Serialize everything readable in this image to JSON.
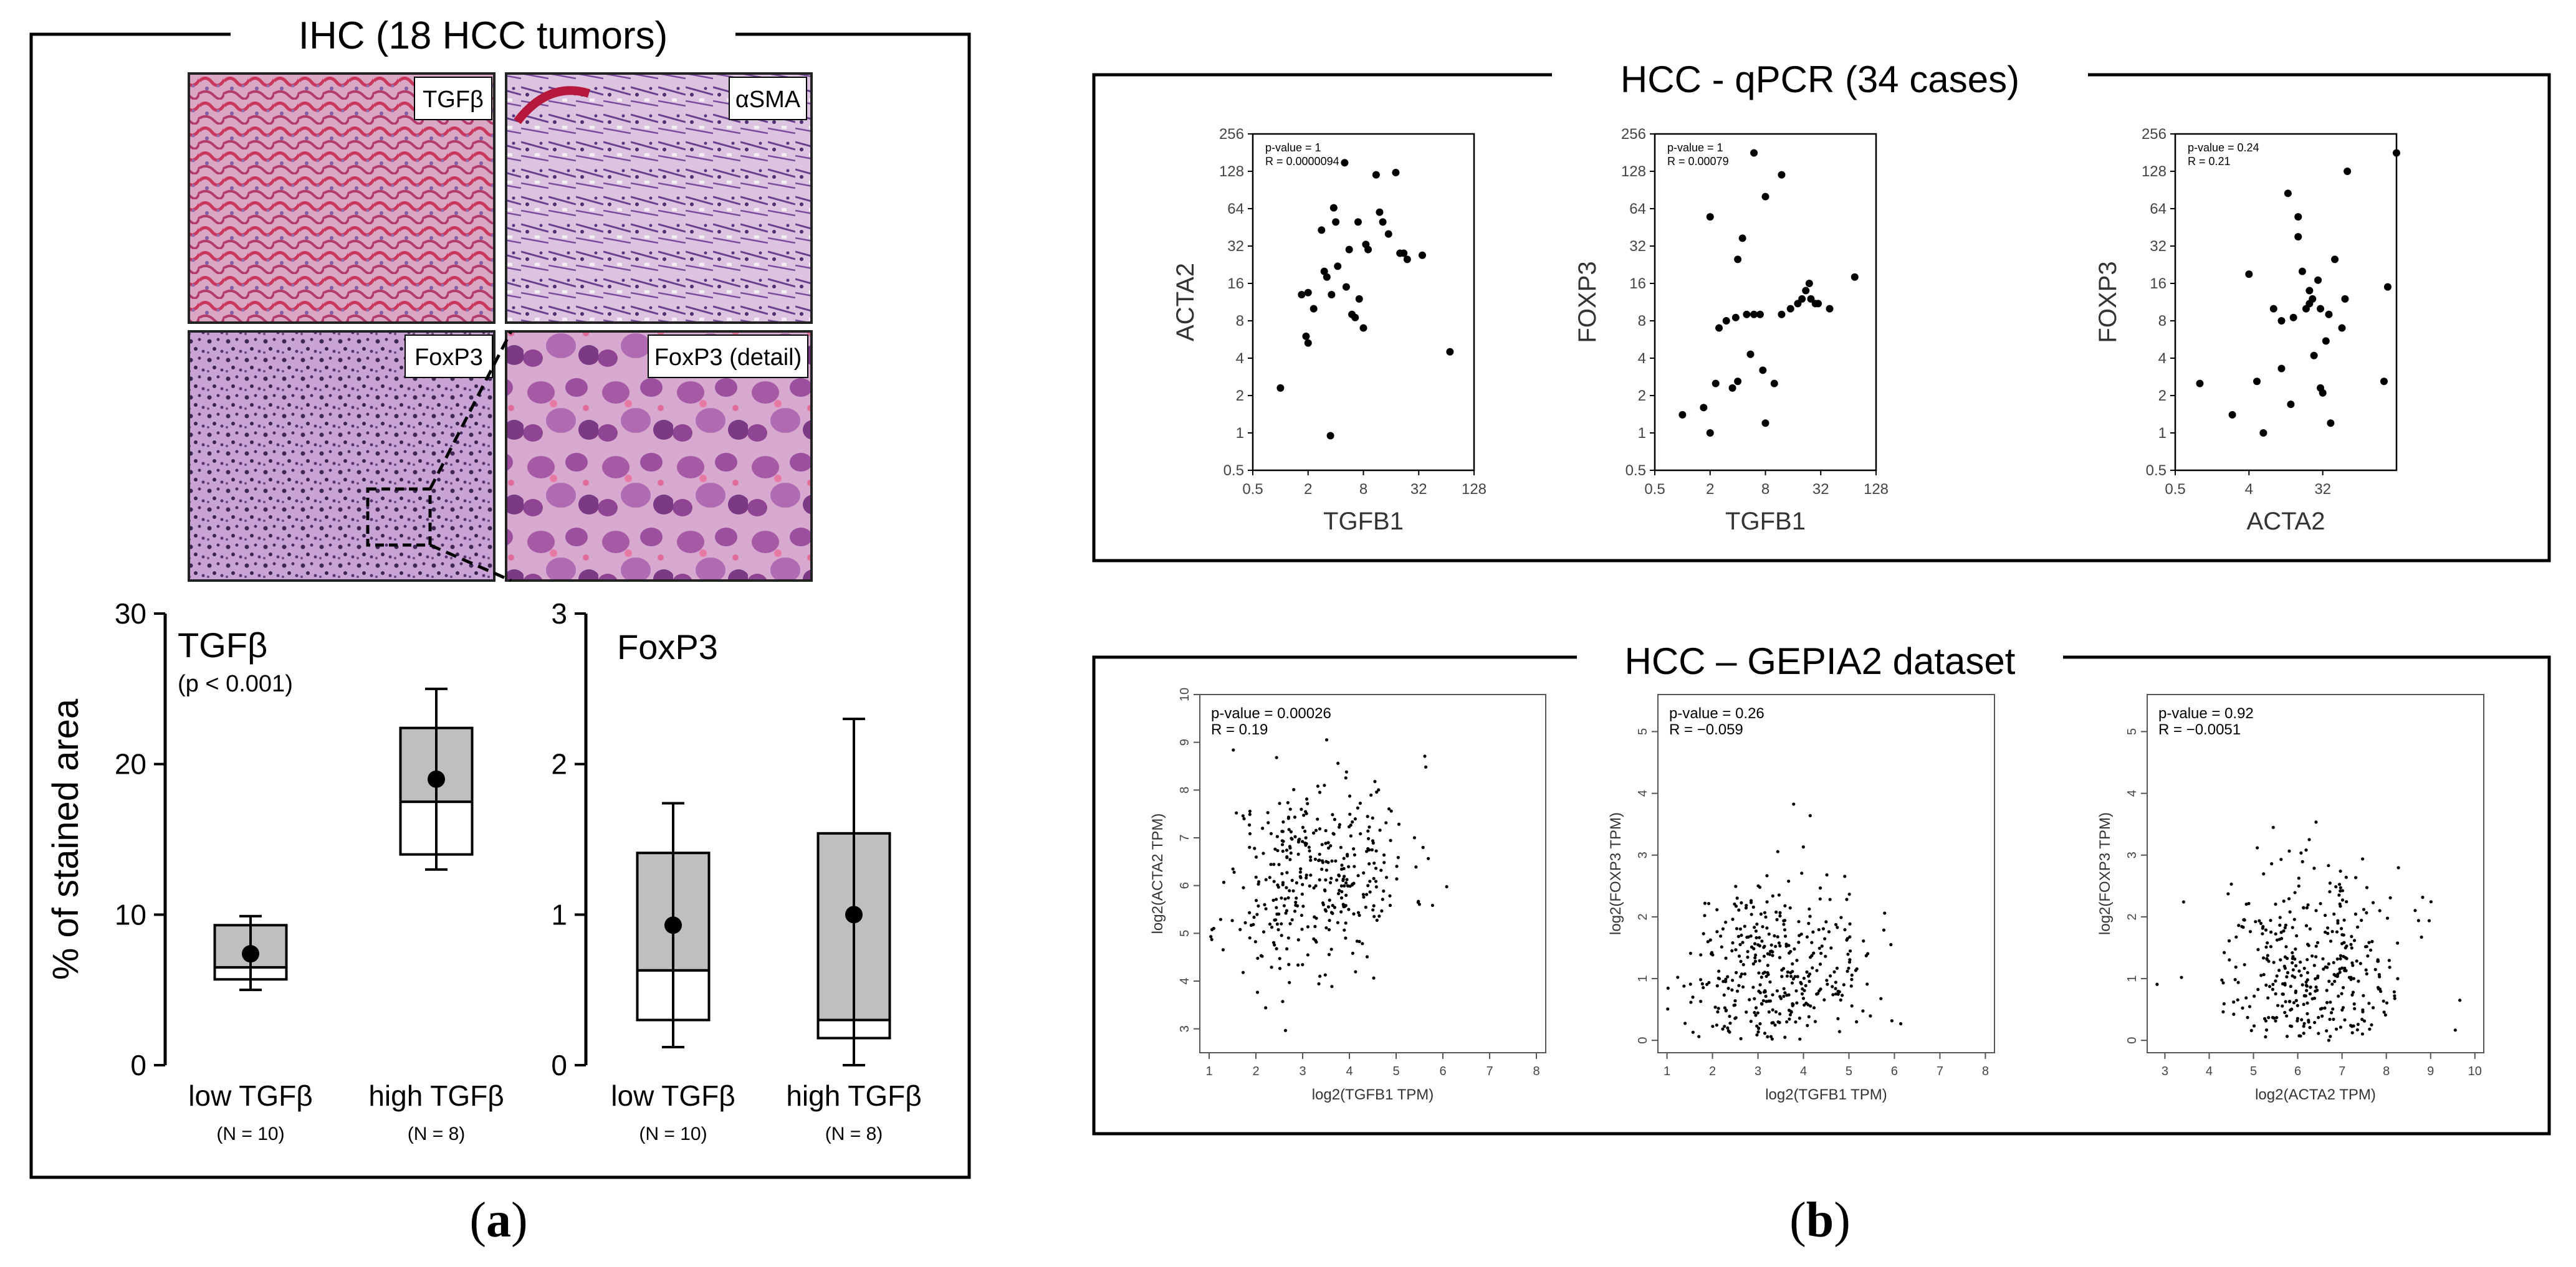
{
  "panel_labels": {
    "a": "a",
    "b": "b"
  },
  "panel_a": {
    "title": "IHC (18 HCC tumors)",
    "image_labels": [
      "TGFβ",
      "αSMA",
      "FoxP3",
      "FoxP3 (detail)"
    ]
  },
  "panel_b": {
    "qpcr_title": "HCC - qPCR (34 cases)",
    "gepia_title": "HCC – GEPIA2 dataset"
  },
  "chart_data": [
    {
      "id": "box_tgfb",
      "type": "box",
      "title": "TGFβ",
      "subtitle": "(p < 0.001)",
      "ylabel": "% of stained area",
      "ylim": [
        0,
        30
      ],
      "yticks": [
        0,
        10,
        20,
        30
      ],
      "categories": [
        "low  TGFβ",
        "high TGFβ"
      ],
      "n_labels": [
        "(N = 10)",
        "(N = 8)"
      ],
      "whisker_low": [
        5,
        13
      ],
      "q1": [
        5.7,
        14
      ],
      "median": [
        6.5,
        17.5
      ],
      "q3": [
        9.3,
        22.4
      ],
      "whisker_high": [
        9.9,
        25
      ],
      "mean": [
        7.4,
        19
      ]
    },
    {
      "id": "box_foxp3",
      "type": "box",
      "title": "FoxP3",
      "ylabel": "",
      "ylim": [
        0,
        3
      ],
      "yticks": [
        0,
        1,
        2,
        3
      ],
      "categories": [
        "low  TGFβ",
        "high TGFβ"
      ],
      "n_labels": [
        "(N = 10)",
        "(N = 8)"
      ],
      "whisker_low": [
        0.12,
        0.0
      ],
      "q1": [
        0.3,
        0.18
      ],
      "median": [
        0.63,
        0.3
      ],
      "q3": [
        1.41,
        1.54
      ],
      "whisker_high": [
        1.74,
        2.3
      ],
      "mean": [
        0.93,
        1.0
      ]
    },
    {
      "id": "qpcr1",
      "type": "scatter",
      "xlabel": "TGFB1",
      "ylabel": "ACTA2",
      "xscale": "log2",
      "yscale": "log2",
      "xticks": [
        "0.5",
        "2",
        "8",
        "32",
        "128"
      ],
      "yticks": [
        "0.5",
        "1",
        "2",
        "4",
        "8",
        "16",
        "32",
        "64",
        "128",
        "256"
      ],
      "xlim": [
        0.5,
        128
      ],
      "ylim": [
        0.5,
        256
      ],
      "annotations": [
        "p-value   = 1",
        "R  = 0.0000094"
      ],
      "x": [
        1.0,
        1.7,
        1.9,
        2.0,
        2.0,
        2.3,
        2.8,
        3.0,
        3.2,
        3.5,
        3.6,
        3.8,
        4.0,
        4.2,
        5.0,
        5.2,
        5.6,
        6.0,
        6.5,
        7.0,
        7.2,
        8.0,
        8.5,
        9.0,
        11.0,
        12.0,
        13.0,
        15.0,
        18.0,
        20.0,
        22.0,
        24.0,
        35.0,
        70.0
      ],
      "y": [
        2.3,
        13,
        6,
        5.3,
        13.5,
        10,
        43,
        20,
        18,
        0.95,
        13,
        65,
        50,
        22,
        150,
        15,
        30,
        9,
        8.5,
        50,
        12,
        7,
        33,
        30,
        120,
        60,
        50,
        40,
        125,
        28,
        28,
        25,
        27,
        4.5
      ]
    },
    {
      "id": "qpcr2",
      "type": "scatter",
      "xlabel": "TGFB1",
      "ylabel": "FOXP3",
      "xscale": "log2",
      "yscale": "log2",
      "xticks": [
        "0.5",
        "2",
        "8",
        "32",
        "128"
      ],
      "yticks": [
        "0.5",
        "1",
        "2",
        "4",
        "8",
        "16",
        "32",
        "64",
        "128",
        "256"
      ],
      "xlim": [
        0.5,
        128
      ],
      "ylim": [
        0.5,
        256
      ],
      "annotations": [
        "p-value   = 1",
        "R  = 0.00079"
      ],
      "x": [
        1.0,
        1.7,
        2.0,
        2.0,
        2.3,
        2.5,
        3.0,
        3.5,
        3.8,
        4.0,
        4.0,
        4.5,
        5.0,
        5.5,
        6.0,
        6.0,
        7.0,
        7.5,
        8.0,
        8.0,
        10.0,
        12.0,
        12.0,
        15.0,
        18.0,
        20.0,
        22.0,
        24.0,
        25.0,
        28.0,
        30.0,
        40.0,
        75.0
      ],
      "y": [
        1.4,
        1.6,
        55,
        1.0,
        2.5,
        7,
        8,
        2.3,
        8.5,
        25,
        2.6,
        37,
        9,
        4.3,
        9,
        180,
        9,
        3.2,
        80,
        1.2,
        2.5,
        120,
        9,
        10,
        11,
        12,
        14,
        16,
        12,
        11,
        11,
        10,
        18
      ]
    },
    {
      "id": "qpcr3",
      "type": "scatter",
      "xlabel": "ACTA2",
      "ylabel": "FOXP3",
      "xscale": "log2",
      "yscale": "log2",
      "xticks": [
        "0.5",
        "4",
        "32"
      ],
      "yticks": [
        "0.5",
        "1",
        "2",
        "4",
        "8",
        "16",
        "32",
        "64",
        "128",
        "256"
      ],
      "xlim": [
        0.5,
        256
      ],
      "ylim": [
        0.5,
        256
      ],
      "annotations": [
        "p-value    = 0.24",
        "R = 0.21"
      ],
      "x": [
        1.0,
        2.5,
        4.0,
        5.0,
        6.0,
        8.0,
        10.0,
        10.0,
        12.0,
        13.0,
        14.0,
        16.0,
        16.0,
        18.0,
        20.0,
        22.0,
        22.0,
        24.0,
        25.0,
        28.0,
        30.0,
        30.0,
        32.0,
        35.0,
        38.0,
        40.0,
        45.0,
        55.0,
        60.0,
        64.0,
        180.0,
        200.0,
        256.0
      ],
      "y": [
        2.5,
        1.4,
        19,
        2.6,
        1.0,
        10,
        3.3,
        8,
        85,
        1.7,
        8.5,
        38,
        55,
        20,
        10,
        14,
        11,
        12,
        4.2,
        17,
        10,
        2.3,
        2.1,
        5.5,
        9,
        1.2,
        25,
        7,
        12,
        128,
        2.6,
        15,
        180
      ]
    },
    {
      "id": "gepia1",
      "type": "scatter",
      "xlabel": "log2(TGFB1 TPM)",
      "ylabel": "log2(ACTA2 TPM)",
      "xlim": [
        0.8,
        8.2
      ],
      "ylim": [
        2.5,
        10
      ],
      "xticks": [
        1,
        2,
        3,
        4,
        5,
        6,
        7,
        8
      ],
      "yticks": [
        3,
        4,
        5,
        6,
        7,
        8,
        9,
        10
      ],
      "annotations": [
        "p-value = 0.00026",
        "R = 0.19"
      ],
      "n_points": 370,
      "cloud": {
        "x_mean": 3.3,
        "x_sd": 1.0,
        "y_mean": 6.2,
        "y_sd": 1.05,
        "r": 0.19,
        "x_min": 1.0,
        "x_max": 8.0,
        "y_min": 2.7,
        "y_max": 9.8
      }
    },
    {
      "id": "gepia2",
      "type": "scatter",
      "xlabel": "log2(TGFB1 TPM)",
      "ylabel": "log2(FOXP3 TPM)",
      "xlim": [
        0.8,
        8.2
      ],
      "ylim": [
        -0.2,
        5.6
      ],
      "xticks": [
        1,
        2,
        3,
        4,
        5,
        6,
        7,
        8
      ],
      "yticks": [
        0,
        1,
        2,
        3,
        4,
        5
      ],
      "annotations": [
        "p-value = 0.26",
        "R = −0.059"
      ],
      "n_points": 370,
      "cloud": {
        "x_mean": 3.3,
        "x_sd": 1.0,
        "y_mean": 0.95,
        "y_sd": 0.85,
        "r": -0.059,
        "x_min": 1.0,
        "x_max": 8.0,
        "y_min": 0.0,
        "y_max": 5.3
      }
    },
    {
      "id": "gepia3",
      "type": "scatter",
      "xlabel": "log2(ACTA2 TPM)",
      "ylabel": "log2(FOXP3 TPM)",
      "xlim": [
        2.6,
        10.2
      ],
      "ylim": [
        -0.2,
        5.6
      ],
      "xticks": [
        3,
        4,
        5,
        6,
        7,
        8,
        9,
        10
      ],
      "yticks": [
        0,
        1,
        2,
        3,
        4,
        5
      ],
      "annotations": [
        "p-value = 0.92",
        "R = −0.0051"
      ],
      "n_points": 370,
      "cloud": {
        "x_mean": 6.3,
        "x_sd": 1.05,
        "y_mean": 0.95,
        "y_sd": 0.85,
        "r": -0.0051,
        "x_min": 2.7,
        "x_max": 9.8,
        "y_min": 0.0,
        "y_max": 5.5
      }
    }
  ]
}
